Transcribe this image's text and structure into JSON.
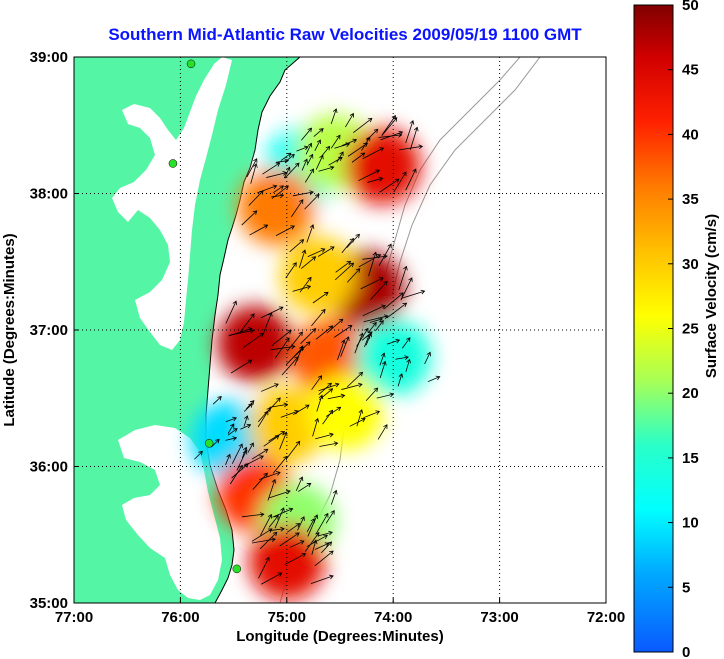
{
  "chart_data": {
    "type": "heatmap",
    "title": "Southern Mid-Atlantic Raw Velocities 2009/05/19 1100 GMT",
    "xlabel": "Longitude (Degrees:Minutes)",
    "ylabel": "Latitude (Degrees:Minutes)",
    "xlim": [
      -77,
      -72
    ],
    "ylim": [
      35,
      39
    ],
    "x_ticks": [
      {
        "value": -77,
        "label": "77:00"
      },
      {
        "value": -76,
        "label": "76:00"
      },
      {
        "value": -75,
        "label": "75:00"
      },
      {
        "value": -74,
        "label": "74:00"
      },
      {
        "value": -73,
        "label": "73:00"
      },
      {
        "value": -72,
        "label": "72:00"
      }
    ],
    "y_ticks": [
      {
        "value": 35,
        "label": "35:00"
      },
      {
        "value": 36,
        "label": "36:00"
      },
      {
        "value": 37,
        "label": "37:00"
      },
      {
        "value": 38,
        "label": "38:00"
      },
      {
        "value": 39,
        "label": "39:00"
      }
    ],
    "grid": true,
    "colorbar": {
      "label": "Surface Velocity (cm/s)",
      "range": [
        0,
        50
      ],
      "ticks": [
        {
          "value": 0,
          "label": "0"
        },
        {
          "value": 5,
          "label": "5"
        },
        {
          "value": 10,
          "label": "10"
        },
        {
          "value": 15,
          "label": "15"
        },
        {
          "value": 20,
          "label": "20"
        },
        {
          "value": 25,
          "label": "25"
        },
        {
          "value": 30,
          "label": "30"
        },
        {
          "value": 35,
          "label": "35"
        },
        {
          "value": 40,
          "label": "40"
        },
        {
          "value": 45,
          "label": "45"
        },
        {
          "value": 50,
          "label": "50"
        }
      ],
      "colormap": "jet"
    },
    "stations": [
      {
        "lon": -75.9,
        "lat": 38.95
      },
      {
        "lon": -76.07,
        "lat": 38.22
      },
      {
        "lon": -75.73,
        "lat": 36.17
      },
      {
        "lon": -75.47,
        "lat": 35.25
      }
    ],
    "velocity_samples": [
      {
        "lon": -74.85,
        "lat": 38.2,
        "speed": 12
      },
      {
        "lon": -74.55,
        "lat": 38.3,
        "speed": 22
      },
      {
        "lon": -74.1,
        "lat": 38.2,
        "speed": 44
      },
      {
        "lon": -75.1,
        "lat": 37.9,
        "speed": 36
      },
      {
        "lon": -74.25,
        "lat": 37.3,
        "speed": 48
      },
      {
        "lon": -74.7,
        "lat": 37.4,
        "speed": 30
      },
      {
        "lon": -75.3,
        "lat": 36.9,
        "speed": 47
      },
      {
        "lon": -74.6,
        "lat": 36.8,
        "speed": 38
      },
      {
        "lon": -74.0,
        "lat": 36.8,
        "speed": 14
      },
      {
        "lon": -75.55,
        "lat": 36.2,
        "speed": 9
      },
      {
        "lon": -75.0,
        "lat": 36.3,
        "speed": 30
      },
      {
        "lon": -74.45,
        "lat": 36.4,
        "speed": 26
      },
      {
        "lon": -75.3,
        "lat": 35.8,
        "speed": 40
      },
      {
        "lon": -74.9,
        "lat": 35.6,
        "speed": 20
      },
      {
        "lon": -75.0,
        "lat": 35.3,
        "speed": 44
      }
    ]
  },
  "colors": {
    "land": "#55f5a6",
    "title": "#0a14ff",
    "station": "#28e028"
  }
}
